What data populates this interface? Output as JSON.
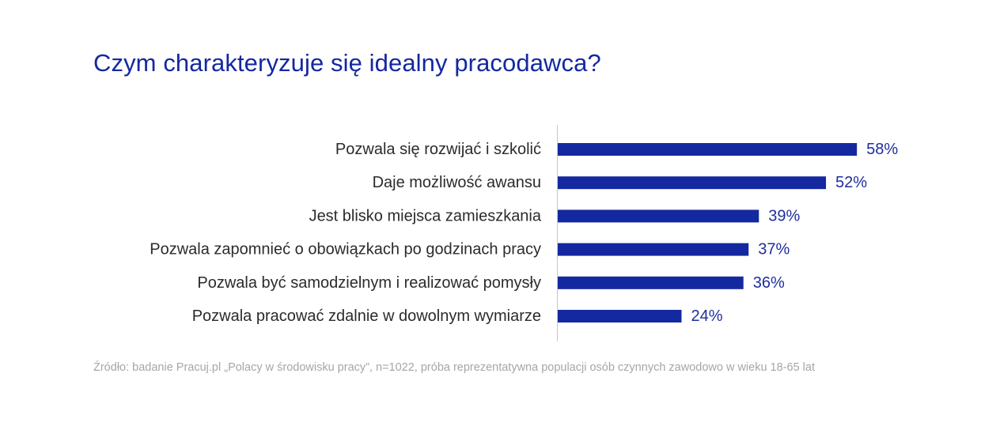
{
  "title": "Czym charakteryzuje się idealny pracodawca?",
  "source": "Źródło: badanie Pracuj.pl „Polacy w środowisku pracy”, n=1022, próba reprezentatywna populacji osób czynnych zawodowo w wieku 18-65 lat",
  "colors": {
    "bar": "#1428a0",
    "title": "#1428a0",
    "value_label": "#1f2e9e",
    "axis": "#c8c8c8"
  },
  "chart_data": {
    "type": "bar",
    "orientation": "horizontal",
    "title": "Czym charakteryzuje się idealny pracodawca?",
    "categories": [
      "Pozwala się rozwijać i szkolić",
      "Daje możliwość awansu",
      "Jest blisko miejsca zamieszkania",
      "Pozwala zapomnieć o obowiązkach po godzinach pracy",
      "Pozwala być samodzielnym i realizować pomysły",
      "Pozwala pracować zdalnie w dowolnym wymiarze"
    ],
    "values": [
      58,
      52,
      39,
      37,
      36,
      24
    ],
    "value_labels": [
      "58%",
      "52%",
      "39%",
      "37%",
      "36%",
      "24%"
    ],
    "unit": "%",
    "xlim": [
      0,
      100
    ],
    "grid": false,
    "legend": "none"
  }
}
